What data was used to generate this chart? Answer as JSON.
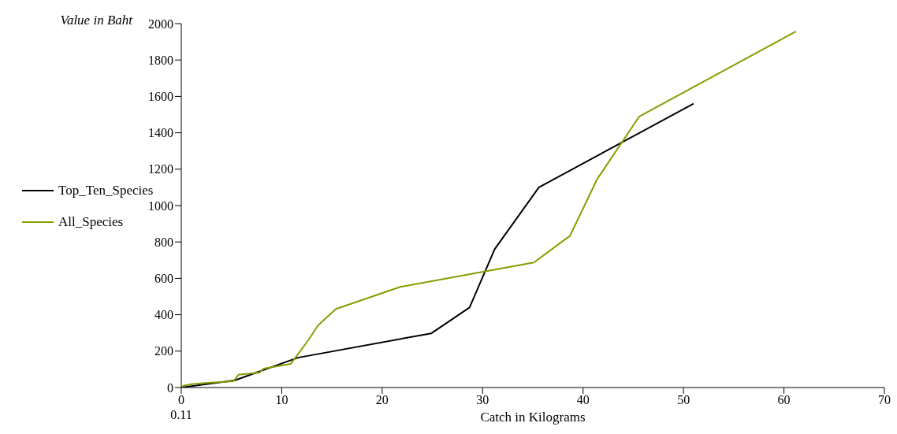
{
  "chart_data": {
    "type": "line",
    "ylabel": "Value in Baht",
    "xlabel": "Catch in Kilograms",
    "annotations": [
      {
        "text": "0.11",
        "x": 0,
        "y": 0
      }
    ],
    "xlim": [
      0,
      70
    ],
    "xticks": [
      0,
      10,
      20,
      30,
      40,
      50,
      60,
      70
    ],
    "ylim": [
      0,
      2000
    ],
    "yticks": [
      0,
      200,
      400,
      600,
      800,
      1000,
      1200,
      1400,
      1600,
      1800,
      2000
    ],
    "grid": false,
    "legend": "left",
    "marker": "none",
    "line_style": "solid",
    "series": [
      {
        "name": "Top_Ten_Species",
        "color": "#000000",
        "x": [
          0,
          5.3,
          11.6,
          24.9,
          28.7,
          31.2,
          35.6,
          51
        ],
        "values": [
          0,
          39,
          164,
          298,
          440,
          760,
          1100,
          1560
        ]
      },
      {
        "name": "All_Species",
        "color": "#80a000",
        "x": [
          0,
          0.2,
          1,
          2.4,
          5.2,
          5.7,
          7.8,
          8.2,
          10.9,
          12.7,
          13.6,
          15.4,
          21.8,
          35.1,
          38.7,
          41.4,
          45.6,
          61.2
        ],
        "values": [
          0,
          10,
          18,
          25,
          35,
          70,
          82,
          104,
          130,
          264,
          341,
          432,
          553,
          687,
          834,
          1145,
          1490,
          1957
        ]
      }
    ]
  }
}
